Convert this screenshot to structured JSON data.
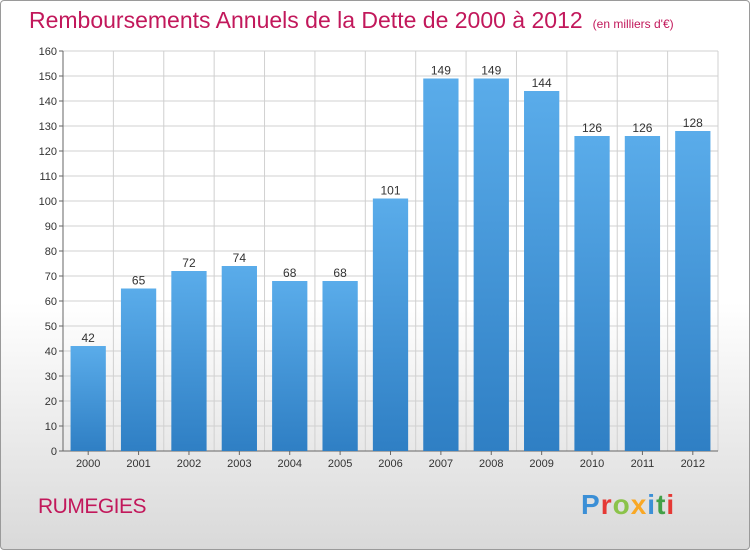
{
  "chart_data": {
    "type": "bar",
    "title": "Remboursements Annuels de la Dette de 2000 à 2012",
    "subtitle": "(en milliers d'€)",
    "xlabel": "",
    "ylabel": "",
    "categories": [
      "2000",
      "2001",
      "2002",
      "2003",
      "2004",
      "2005",
      "2006",
      "2007",
      "2008",
      "2009",
      "2010",
      "2011",
      "2012"
    ],
    "values": [
      42,
      65,
      72,
      74,
      68,
      68,
      101,
      149,
      149,
      144,
      126,
      126,
      128
    ],
    "ylim": [
      0,
      160
    ],
    "ytick_step": 10,
    "grid": true,
    "bar_color": "#3b8fd6",
    "title_color": "#c2185b"
  },
  "footer": {
    "commune": "RUMEGIES",
    "logo": {
      "letters": [
        "P",
        "r",
        "o",
        "x",
        "i",
        "t",
        "i"
      ],
      "colors": [
        "#3b8fd6",
        "#e53935",
        "#8bc34a",
        "#f9a825",
        "#3b8fd6",
        "#43a047",
        "#e53935"
      ]
    }
  }
}
